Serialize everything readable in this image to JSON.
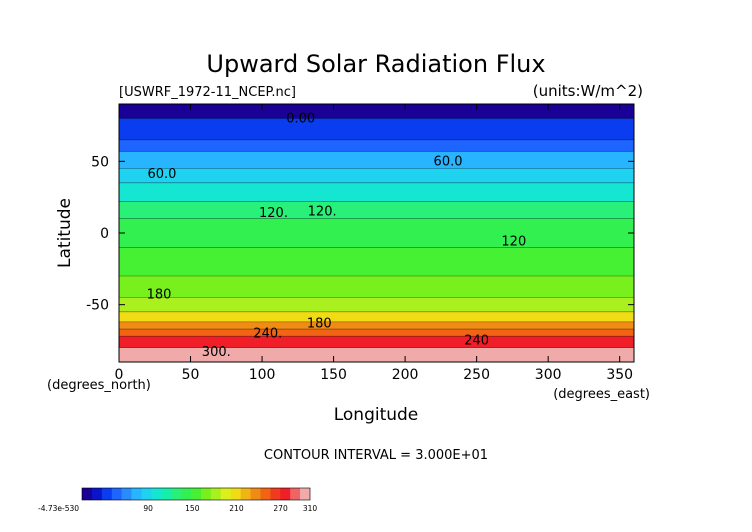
{
  "chart_data": {
    "type": "heatmap",
    "title": "Upward Solar Radiation Flux",
    "file_label": "[USWRF_1972-11_NCEP.nc]",
    "units_label": "(units:W/m^2)",
    "xlabel": "Longitude",
    "ylabel": "Latitude",
    "x_unit_label": "(degrees_east)",
    "y_unit_label": "(degrees_north)",
    "xlim": [
      0,
      360
    ],
    "ylim": [
      -90,
      90
    ],
    "xticks": [
      0,
      50,
      100,
      150,
      200,
      250,
      300,
      350
    ],
    "yticks": [
      50,
      0,
      -50
    ],
    "contour_interval_text": "CONTOUR INTERVAL = 3.000E+01",
    "contour_labels": [
      {
        "text": "0.00",
        "lon": 127,
        "lat": 80
      },
      {
        "text": "60.0",
        "lon": 230,
        "lat": 50
      },
      {
        "text": "60.0",
        "lon": 30,
        "lat": 41
      },
      {
        "text": "120.",
        "lon": 108,
        "lat": 14
      },
      {
        "text": "120.",
        "lon": 142,
        "lat": 15
      },
      {
        "text": "120",
        "lon": 276,
        "lat": -6
      },
      {
        "text": "180",
        "lon": 28,
        "lat": -43
      },
      {
        "text": "180",
        "lon": 140,
        "lat": -63
      },
      {
        "text": "240.",
        "lon": 104,
        "lat": -70
      },
      {
        "text": "240",
        "lon": 250,
        "lat": -75
      },
      {
        "text": "300.",
        "lon": 68,
        "lat": -83
      }
    ],
    "latitude_bands": [
      {
        "lat_top": 90,
        "lat_bottom": 80,
        "value": 0
      },
      {
        "lat_top": 80,
        "lat_bottom": 65,
        "value": 30
      },
      {
        "lat_top": 65,
        "lat_bottom": 57,
        "value": 45
      },
      {
        "lat_top": 57,
        "lat_bottom": 45,
        "value": 75
      },
      {
        "lat_top": 45,
        "lat_bottom": 35,
        "value": 90
      },
      {
        "lat_top": 35,
        "lat_bottom": 22,
        "value": 105
      },
      {
        "lat_top": 22,
        "lat_bottom": 10,
        "value": 125
      },
      {
        "lat_top": 10,
        "lat_bottom": -10,
        "value": 140
      },
      {
        "lat_top": -10,
        "lat_bottom": -30,
        "value": 150
      },
      {
        "lat_top": -30,
        "lat_bottom": -45,
        "value": 165
      },
      {
        "lat_top": -45,
        "lat_bottom": -55,
        "value": 185
      },
      {
        "lat_top": -55,
        "lat_bottom": -62,
        "value": 210
      },
      {
        "lat_top": -62,
        "lat_bottom": -67,
        "value": 235
      },
      {
        "lat_top": -67,
        "lat_bottom": -72,
        "value": 255
      },
      {
        "lat_top": -72,
        "lat_bottom": -80,
        "value": 280
      },
      {
        "lat_top": -80,
        "lat_bottom": -90,
        "value": 300
      }
    ],
    "colorbar": {
      "min_label": "-4.73e-530",
      "tick_labels": [
        "90",
        "150",
        "210",
        "270",
        "310"
      ],
      "tick_values": [
        90,
        150,
        210,
        270,
        310
      ],
      "range": [
        0,
        310
      ],
      "colors": [
        "#1a0096",
        "#0a14c8",
        "#0a3cf0",
        "#1e64ff",
        "#288cff",
        "#28b4ff",
        "#1ed2f0",
        "#14e6d2",
        "#14f0aa",
        "#28f078",
        "#32f050",
        "#46f032",
        "#78f01e",
        "#aaf01e",
        "#dcf01e",
        "#f0dc14",
        "#f0b414",
        "#f08c14",
        "#f06414",
        "#f03c1e",
        "#f01e28",
        "#f06464",
        "#f0aaaa"
      ]
    }
  }
}
